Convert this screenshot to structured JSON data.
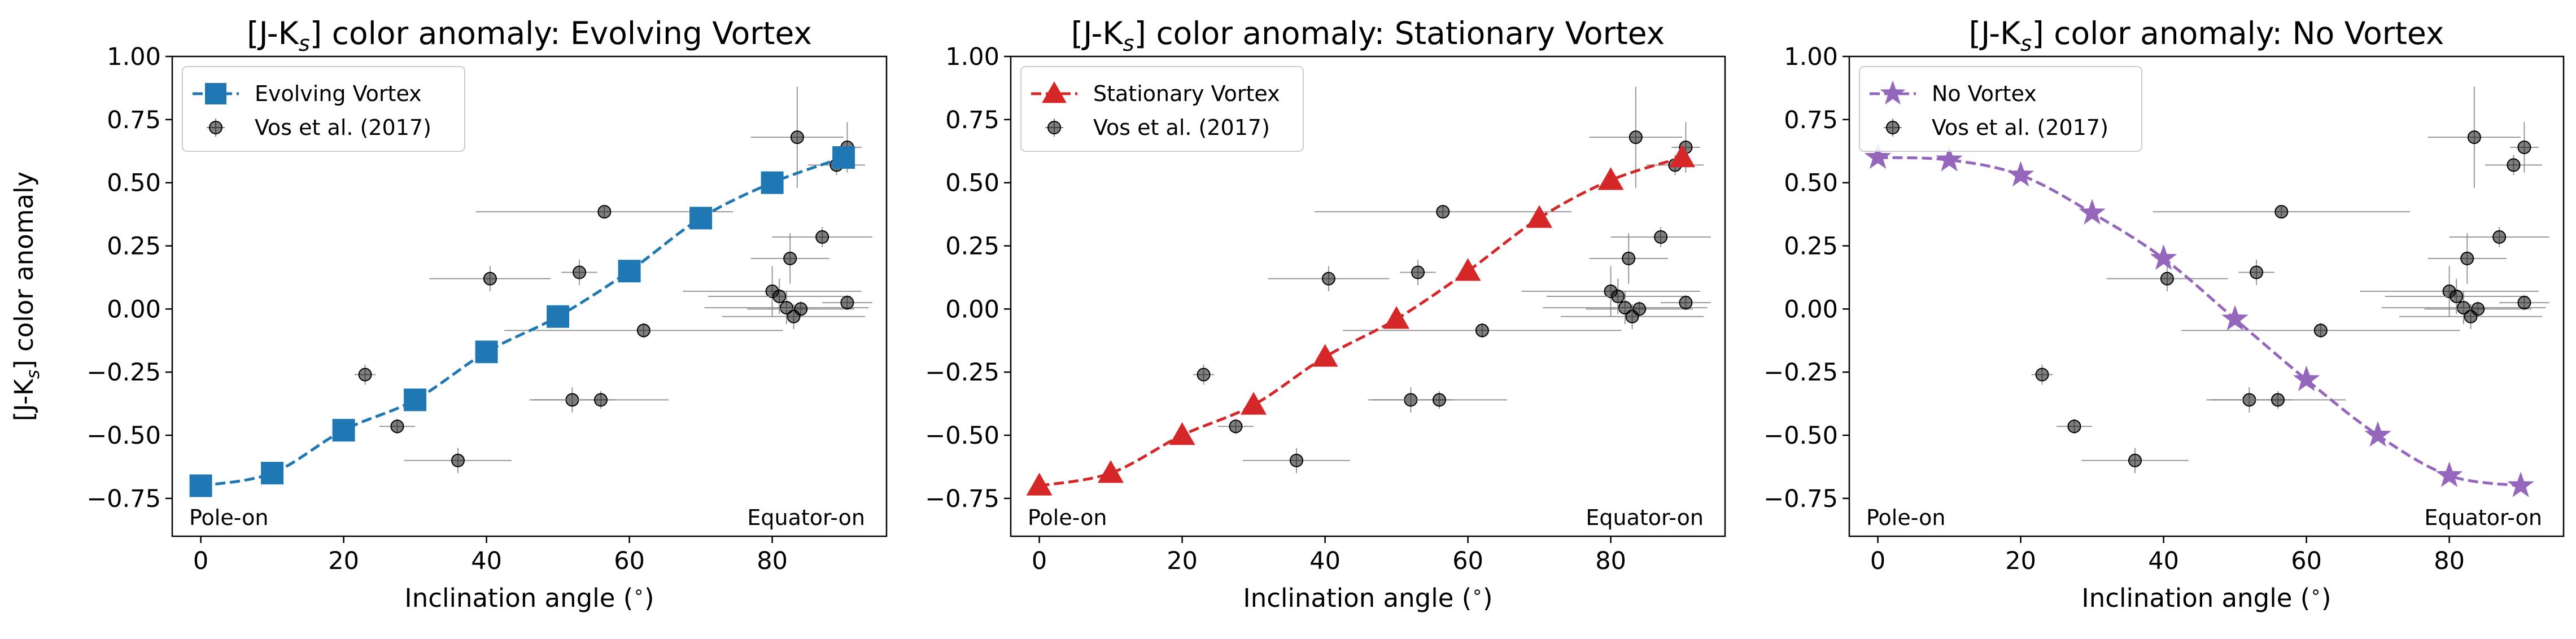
{
  "observed": {
    "label": "Vos et al. (2017)",
    "color": "#000000",
    "points": [
      {
        "x": 23,
        "y": -0.26,
        "xerr": 1.5,
        "yerr": 0.04
      },
      {
        "x": 27.5,
        "y": -0.465,
        "xerr": 2.5,
        "yerr": 0.03
      },
      {
        "x": 36,
        "y": -0.6,
        "xerr": 7.5,
        "yerr": 0.05
      },
      {
        "x": 40.5,
        "y": 0.12,
        "xerr": 8.5,
        "yerr": 0.05
      },
      {
        "x": 52,
        "y": -0.36,
        "xerr": 6,
        "yerr": 0.05
      },
      {
        "x": 53,
        "y": 0.145,
        "xerr": 2.5,
        "yerr": 0.05
      },
      {
        "x": 56,
        "y": -0.36,
        "xerr": 9.5,
        "yerr": 0.035
      },
      {
        "x": 56.5,
        "y": 0.385,
        "xerr": 18,
        "yerr": 0.025
      },
      {
        "x": 62,
        "y": -0.085,
        "xerr": 19.5,
        "yerr": 0.03
      },
      {
        "x": 80,
        "y": 0.07,
        "xerr": 12.5,
        "yerr": 0.1
      },
      {
        "x": 81,
        "y": 0.05,
        "xerr": 10,
        "yerr": 0.07
      },
      {
        "x": 82,
        "y": 0.005,
        "xerr": 11.5,
        "yerr": 0.065
      },
      {
        "x": 82.5,
        "y": 0.2,
        "xerr": 5.5,
        "yerr": 0.1
      },
      {
        "x": 83,
        "y": -0.03,
        "xerr": 10,
        "yerr": 0.05
      },
      {
        "x": 83.5,
        "y": 0.68,
        "xerr": 6.5,
        "yerr": 0.2
      },
      {
        "x": 84,
        "y": 0.0,
        "xerr": 7.5,
        "yerr": 0.03
      },
      {
        "x": 87,
        "y": 0.285,
        "xerr": 7,
        "yerr": 0.04
      },
      {
        "x": 89,
        "y": 0.57,
        "xerr": 4,
        "yerr": 0.04
      },
      {
        "x": 90.5,
        "y": 0.64,
        "xerr": 2,
        "yerr": 0.1
      },
      {
        "x": 90.5,
        "y": 0.025,
        "xerr": 3.5,
        "yerr": 0.03
      }
    ]
  },
  "annotations": {
    "left": "Pole-on",
    "right": "Equator-on"
  },
  "chart_data": [
    {
      "type": "line",
      "title": "[J-K$_s$] color anomaly: Evolving Vortex",
      "title_parts": [
        "[J-K",
        "s",
        "] color anomaly: Evolving Vortex"
      ],
      "xlabel": "Inclination angle ($^\\circ$)",
      "xlabel_parts": [
        "Inclination angle (",
        "∘",
        ")"
      ],
      "ylabel": "[J-K$_s$] color anomaly",
      "ylabel_parts": [
        "[J-K",
        "s",
        "] color anomaly"
      ],
      "xlim": [
        -4,
        96
      ],
      "ylim": [
        -0.9,
        1.0
      ],
      "xticks": [
        0,
        20,
        40,
        60,
        80
      ],
      "xtick_labels": [
        "0",
        "20",
        "40",
        "60",
        "80"
      ],
      "yticks": [
        -0.75,
        -0.5,
        -0.25,
        0.0,
        0.25,
        0.5,
        0.75,
        1.0
      ],
      "ytick_labels": [
        "−0.75",
        "−0.50",
        "−0.25",
        "0.00",
        "0.25",
        "0.50",
        "0.75",
        "1.00"
      ],
      "legend_position": "top-left",
      "series": [
        {
          "name": "Evolving Vortex",
          "color": "#1f77b4",
          "marker": "square",
          "linestyle": "dashed",
          "x": [
            0,
            10,
            20,
            30,
            40,
            50,
            60,
            70,
            80,
            90
          ],
          "y": [
            -0.7,
            -0.65,
            -0.48,
            -0.36,
            -0.17,
            -0.03,
            0.15,
            0.36,
            0.5,
            0.6
          ]
        }
      ]
    },
    {
      "type": "line",
      "title": "[J-K$_s$] color anomaly: Stationary Vortex",
      "title_parts": [
        "[J-K",
        "s",
        "] color anomaly: Stationary Vortex"
      ],
      "xlabel": "Inclination angle ($^\\circ$)",
      "xlabel_parts": [
        "Inclination angle (",
        "∘",
        ")"
      ],
      "ylabel": "",
      "ylabel_parts": [
        "",
        "",
        ""
      ],
      "xlim": [
        -4,
        96
      ],
      "ylim": [
        -0.9,
        1.0
      ],
      "xticks": [
        0,
        20,
        40,
        60,
        80
      ],
      "xtick_labels": [
        "0",
        "20",
        "40",
        "60",
        "80"
      ],
      "yticks": [
        -0.75,
        -0.5,
        -0.25,
        0.0,
        0.25,
        0.5,
        0.75,
        1.0
      ],
      "ytick_labels": [
        "−0.75",
        "−0.50",
        "−0.25",
        "0.00",
        "0.25",
        "0.50",
        "0.75",
        "1.00"
      ],
      "legend_position": "top-left",
      "series": [
        {
          "name": "Stationary Vortex",
          "color": "#d62728",
          "marker": "triangle",
          "linestyle": "dashed",
          "x": [
            0,
            10,
            20,
            30,
            40,
            50,
            60,
            70,
            80,
            90
          ],
          "y": [
            -0.7,
            -0.65,
            -0.5,
            -0.38,
            -0.19,
            -0.04,
            0.15,
            0.36,
            0.51,
            0.6
          ]
        }
      ]
    },
    {
      "type": "line",
      "title": "[J-K$_s$] color anomaly: No Vortex",
      "title_parts": [
        "[J-K",
        "s",
        "] color anomaly: No Vortex"
      ],
      "xlabel": "Inclination angle ($^\\circ$)",
      "xlabel_parts": [
        "Inclination angle (",
        "∘",
        ")"
      ],
      "ylabel": "",
      "ylabel_parts": [
        "",
        "",
        ""
      ],
      "xlim": [
        -4,
        96
      ],
      "ylim": [
        -0.9,
        1.0
      ],
      "xticks": [
        0,
        20,
        40,
        60,
        80
      ],
      "xtick_labels": [
        "0",
        "20",
        "40",
        "60",
        "80"
      ],
      "yticks": [
        -0.75,
        -0.5,
        -0.25,
        0.0,
        0.25,
        0.5,
        0.75,
        1.0
      ],
      "ytick_labels": [
        "−0.75",
        "−0.50",
        "−0.25",
        "0.00",
        "0.25",
        "0.50",
        "0.75",
        "1.00"
      ],
      "legend_position": "top-left",
      "series": [
        {
          "name": "No Vortex",
          "color": "#9467bd",
          "marker": "star",
          "linestyle": "dashed",
          "x": [
            0,
            10,
            20,
            30,
            40,
            50,
            60,
            70,
            80,
            90
          ],
          "y": [
            0.6,
            0.59,
            0.53,
            0.38,
            0.2,
            -0.04,
            -0.28,
            -0.5,
            -0.66,
            -0.7
          ]
        }
      ]
    }
  ]
}
